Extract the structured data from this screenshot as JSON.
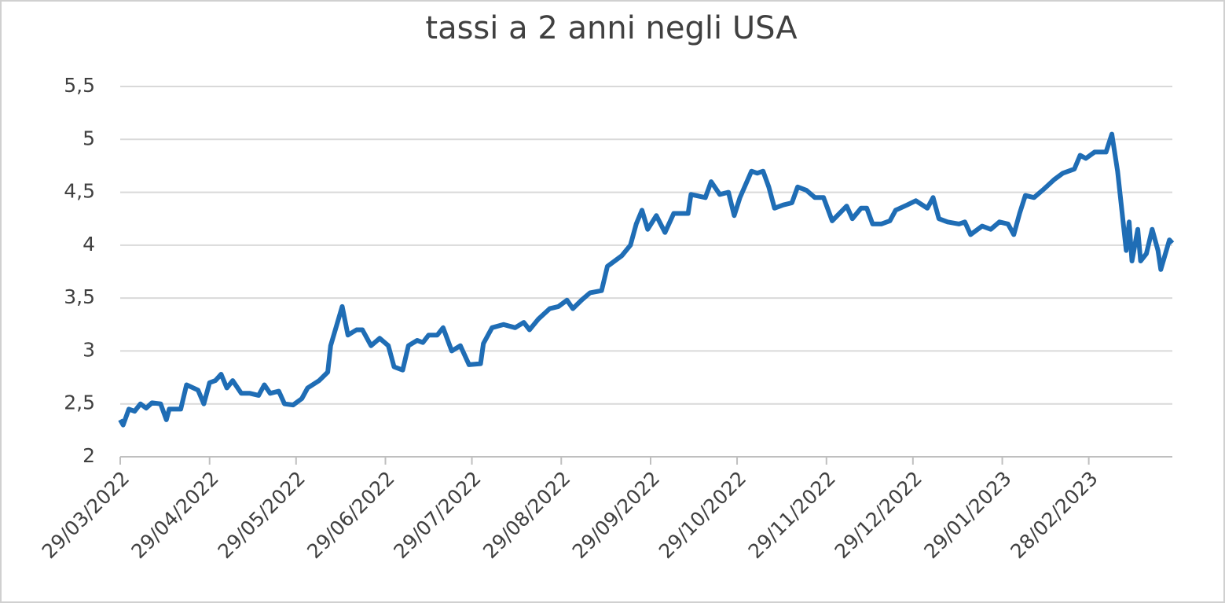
{
  "chart_data": {
    "type": "line",
    "title": "tassi a 2 anni negli USA",
    "x": [
      "29/03/2022",
      "30/03/2022",
      "01/04/2022",
      "03/04/2022",
      "05/04/2022",
      "07/04/2022",
      "09/04/2022",
      "12/04/2022",
      "14/04/2022",
      "15/04/2022",
      "19/04/2022",
      "21/04/2022",
      "25/04/2022",
      "27/04/2022",
      "29/04/2022",
      "01/05/2022",
      "03/05/2022",
      "05/05/2022",
      "07/05/2022",
      "10/05/2022",
      "13/05/2022",
      "16/05/2022",
      "18/05/2022",
      "20/05/2022",
      "23/05/2022",
      "25/05/2022",
      "28/05/2022",
      "31/05/2022",
      "02/06/2022",
      "06/06/2022",
      "09/06/2022",
      "10/06/2022",
      "14/06/2022",
      "16/06/2022",
      "19/06/2022",
      "21/06/2022",
      "24/06/2022",
      "27/06/2022",
      "30/06/2022",
      "02/07/2022",
      "05/07/2022",
      "07/07/2022",
      "10/07/2022",
      "12/07/2022",
      "14/07/2022",
      "17/07/2022",
      "19/07/2022",
      "22/07/2022",
      "25/07/2022",
      "28/07/2022",
      "01/08/2022",
      "02/08/2022",
      "05/08/2022",
      "09/08/2022",
      "13/08/2022",
      "16/08/2022",
      "18/08/2022",
      "21/08/2022",
      "25/08/2022",
      "28/08/2022",
      "31/08/2022",
      "02/09/2022",
      "05/09/2022",
      "08/09/2022",
      "12/09/2022",
      "14/09/2022",
      "19/09/2022",
      "22/09/2022",
      "24/09/2022",
      "26/09/2022",
      "28/09/2022",
      "01/10/2022",
      "04/10/2022",
      "07/10/2022",
      "12/10/2022",
      "13/10/2022",
      "18/10/2022",
      "20/10/2022",
      "23/10/2022",
      "26/10/2022",
      "28/10/2022",
      "30/10/2022",
      "03/11/2022",
      "05/11/2022",
      "07/11/2022",
      "09/11/2022",
      "11/11/2022",
      "14/11/2022",
      "17/11/2022",
      "19/11/2022",
      "22/11/2022",
      "25/11/2022",
      "28/11/2022",
      "01/12/2022",
      "06/12/2022",
      "08/12/2022",
      "11/12/2022",
      "13/12/2022",
      "15/12/2022",
      "18/12/2022",
      "21/12/2022",
      "23/12/2022",
      "27/12/2022",
      "30/12/2022",
      "03/01/2023",
      "05/01/2023",
      "07/01/2023",
      "10/01/2023",
      "14/01/2023",
      "16/01/2023",
      "18/01/2023",
      "22/01/2023",
      "25/01/2023",
      "28/01/2023",
      "31/01/2023",
      "02/02/2023",
      "04/02/2023",
      "06/02/2023",
      "09/02/2023",
      "12/02/2023",
      "16/02/2023",
      "19/02/2023",
      "23/02/2023",
      "25/02/2023",
      "27/02/2023",
      "02/03/2023",
      "06/03/2023",
      "08/03/2023",
      "10/03/2023",
      "13/03/2023",
      "14/03/2023",
      "15/03/2023",
      "17/03/2023",
      "18/03/2023",
      "20/03/2023",
      "22/03/2023",
      "24/03/2023",
      "25/03/2023",
      "28/03/2023",
      "29/03/2023"
    ],
    "series": [
      {
        "color": "#1f6db5",
        "values": [
          2.35,
          2.3,
          2.45,
          2.43,
          2.5,
          2.46,
          2.51,
          2.5,
          2.35,
          2.45,
          2.45,
          2.68,
          2.63,
          2.5,
          2.7,
          2.72,
          2.78,
          2.65,
          2.72,
          2.6,
          2.6,
          2.58,
          2.68,
          2.6,
          2.62,
          2.5,
          2.49,
          2.55,
          2.65,
          2.72,
          2.8,
          3.05,
          3.42,
          3.15,
          3.2,
          3.2,
          3.05,
          3.12,
          3.05,
          2.85,
          2.82,
          3.05,
          3.1,
          3.08,
          3.15,
          3.15,
          3.22,
          3.0,
          3.05,
          2.87,
          2.88,
          3.07,
          3.22,
          3.25,
          3.22,
          3.27,
          3.2,
          3.3,
          3.4,
          3.42,
          3.48,
          3.4,
          3.48,
          3.55,
          3.57,
          3.8,
          3.9,
          4.0,
          4.2,
          4.33,
          4.15,
          4.28,
          4.12,
          4.3,
          4.3,
          4.48,
          4.45,
          4.6,
          4.48,
          4.5,
          4.28,
          4.45,
          4.7,
          4.68,
          4.7,
          4.55,
          4.35,
          4.38,
          4.4,
          4.55,
          4.52,
          4.45,
          4.45,
          4.23,
          4.37,
          4.25,
          4.35,
          4.35,
          4.2,
          4.2,
          4.23,
          4.33,
          4.38,
          4.42,
          4.35,
          4.45,
          4.25,
          4.22,
          4.2,
          4.22,
          4.1,
          4.18,
          4.15,
          4.22,
          4.2,
          4.1,
          4.3,
          4.47,
          4.45,
          4.52,
          4.62,
          4.68,
          4.72,
          4.85,
          4.82,
          4.88,
          4.88,
          5.05,
          4.7,
          3.95,
          4.22,
          3.85,
          4.15,
          3.85,
          3.92,
          4.15,
          3.95,
          3.77,
          4.05,
          4.02
        ]
      }
    ],
    "xticks": [
      "29/03/2022",
      "29/04/2022",
      "29/05/2022",
      "29/06/2022",
      "29/07/2022",
      "29/08/2022",
      "29/09/2022",
      "29/10/2022",
      "29/11/2022",
      "29/12/2022",
      "29/01/2023",
      "28/02/2023"
    ],
    "ylim": [
      2,
      5.5
    ],
    "yticks": [
      2,
      {
        "value": 2.5,
        "label": "2,5"
      },
      3,
      {
        "value": 3.5,
        "label": "3,5"
      },
      4,
      {
        "value": 4.5,
        "label": "4,5"
      },
      5,
      {
        "value": 5.5,
        "label": "5,5"
      }
    ],
    "grid": true
  }
}
